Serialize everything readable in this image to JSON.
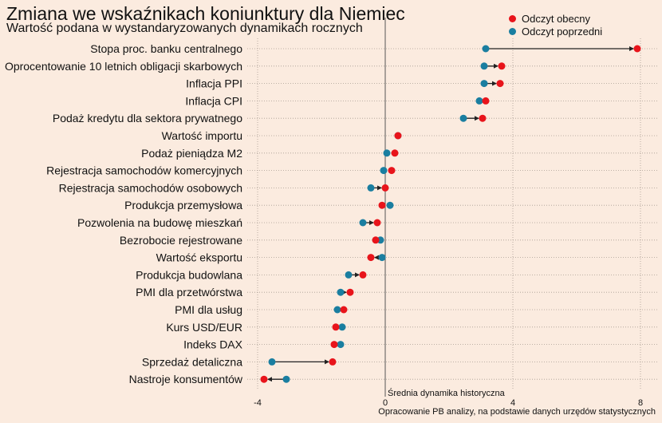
{
  "chart_data": {
    "type": "dumbbell",
    "title": "Zmiana we wskaźnikach koniunktury dla Niemiec",
    "subtitle": "Wartość podana w wystandaryzowanych dynamikach rocznych",
    "xlabel": "",
    "ylabel": "",
    "xlim": [
      -4.3,
      8.6
    ],
    "xticks": [
      -4,
      0,
      4,
      8
    ],
    "xtick_labels": [
      "-4",
      "0",
      "4",
      "8"
    ],
    "grid": true,
    "legend_position": "top-right",
    "reference_line": {
      "x": 0,
      "label": "Średnia dynamika historyczna"
    },
    "caption": "Opracowanie PB analizy, na podstawie danych urzędów statystycznych",
    "series": [
      {
        "name": "Odczyt obecny",
        "color": "#e8141b"
      },
      {
        "name": "Odczyt poprzedni",
        "color": "#1a7ea0"
      }
    ],
    "categories": [
      "Stopa proc. banku centralnego",
      "Oprocentowanie 10 letnich obligacji skarbowych",
      "Inflacja PPI",
      "Inflacja CPI",
      "Podaż kredytu dla sektora prywatnego",
      "Wartość importu",
      "Podaż pieniądza M2",
      "Rejestracja samochodów komercyjnych",
      "Rejestracja samochodów osobowych",
      "Produkcja przemysłowa",
      "Pozwolenia na budowę mieszkań",
      "Bezrobocie rejestrowane",
      "Wartość eksportu",
      "Produkcja budowlana",
      "PMI dla przetwórstwa",
      "PMI dla usług",
      "Kurs USD/EUR",
      "Indeks DAX",
      "Sprzedaż detaliczna",
      "Nastroje konsumentów"
    ],
    "current": [
      7.9,
      3.65,
      3.6,
      3.15,
      3.05,
      0.4,
      0.3,
      0.2,
      0.0,
      -0.1,
      -0.25,
      -0.3,
      -0.45,
      -0.7,
      -1.1,
      -1.3,
      -1.55,
      -1.6,
      -1.65,
      -3.8
    ],
    "previous": [
      3.15,
      3.1,
      3.1,
      2.95,
      2.45,
      0.4,
      0.05,
      -0.05,
      -0.45,
      0.15,
      -0.7,
      -0.15,
      -0.1,
      -1.15,
      -1.4,
      -1.5,
      -1.35,
      -1.4,
      -3.55,
      -3.1
    ]
  },
  "colors": {
    "background": "#fbebdf",
    "current": "#e8141b",
    "previous": "#1a7ea0",
    "arrow": "#222222",
    "grid": "#a89c92",
    "zero_line": "#555555"
  }
}
